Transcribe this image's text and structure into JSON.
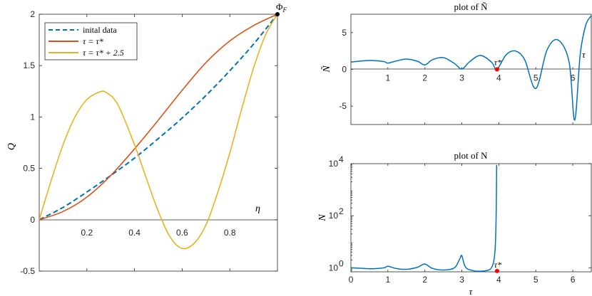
{
  "colors": {
    "series1": "#0072BD",
    "series2": "#D95319",
    "series3": "#EDB120",
    "marker": "#FF0000",
    "axes": "#262626"
  },
  "chart_data": [
    {
      "type": "line",
      "ylabel": "Q",
      "xlabel": "η",
      "xlim": [
        0,
        1
      ],
      "ylim": [
        -0.5,
        2
      ],
      "xticks": [
        "0.2",
        "0.4",
        "0.6",
        "0.8"
      ],
      "yticks": [
        "-0.5",
        "0",
        "0.5",
        "1",
        "1.5",
        "2"
      ],
      "legend_position": "top-left",
      "endpoint_label": "Φ_F",
      "endpoint": [
        1,
        2
      ],
      "series": [
        {
          "name": "inital data",
          "style": "dashed",
          "x": [
            0,
            0.1,
            0.2,
            0.3,
            0.4,
            0.5,
            0.6,
            0.7,
            0.8,
            0.9,
            1
          ],
          "y": [
            0,
            0.12,
            0.27,
            0.43,
            0.6,
            0.79,
            0.99,
            1.21,
            1.45,
            1.71,
            2
          ]
        },
        {
          "name": "τ = τ*",
          "style": "solid",
          "x": [
            0,
            0.1,
            0.2,
            0.3,
            0.4,
            0.5,
            0.6,
            0.7,
            0.8,
            0.9,
            1
          ],
          "y": [
            0,
            0.08,
            0.22,
            0.43,
            0.69,
            0.97,
            1.26,
            1.53,
            1.74,
            1.89,
            2
          ]
        },
        {
          "name": "τ = τ* + 2.5",
          "style": "solid",
          "x": [
            0,
            0.05,
            0.1,
            0.15,
            0.2,
            0.25,
            0.28,
            0.33,
            0.4,
            0.45,
            0.5,
            0.55,
            0.6,
            0.65,
            0.7,
            0.75,
            0.8,
            0.85,
            0.9,
            0.95,
            1
          ],
          "y": [
            0,
            0.38,
            0.73,
            1.0,
            1.17,
            1.24,
            1.24,
            1.12,
            0.73,
            0.4,
            0.08,
            -0.17,
            -0.28,
            -0.23,
            -0.05,
            0.27,
            0.65,
            1.08,
            1.48,
            1.8,
            2
          ]
        }
      ]
    },
    {
      "type": "line",
      "title": "plot of Ñ",
      "ylabel": "Ñ",
      "xlabel": "τ",
      "xlim": [
        0,
        6.5
      ],
      "ylim": [
        -7.5,
        7.5
      ],
      "xticks": [
        "1",
        "2",
        "3",
        "4",
        "5",
        "6"
      ],
      "yticks": [
        "5",
        "0",
        "-5"
      ],
      "marker_label": "τ*",
      "marker": [
        3.95,
        0
      ],
      "series": [
        {
          "name": "",
          "x": [
            0,
            0.3,
            0.6,
            0.9,
            1,
            1.2,
            1.5,
            1.8,
            2,
            2.2,
            2.5,
            2.8,
            3,
            3.2,
            3.5,
            3.8,
            3.95,
            4.2,
            4.45,
            4.7,
            5,
            5.3,
            5.6,
            5.9,
            6.05,
            6.2,
            6.35,
            6.5
          ],
          "y": [
            1.0,
            1.15,
            1.2,
            1.05,
            0.85,
            1.1,
            1.4,
            1.1,
            0.6,
            1.3,
            1.6,
            0.8,
            0.05,
            1.0,
            1.9,
            1.0,
            0.05,
            2.0,
            2.5,
            1.3,
            -2.6,
            2.6,
            4.0,
            1.0,
            -6.9,
            2.0,
            6.0,
            7.3
          ]
        }
      ]
    },
    {
      "type": "line",
      "title": "plot of N",
      "ylabel": "N",
      "xlabel": "τ",
      "xlim": [
        0,
        6.5
      ],
      "ylim": [
        0.7,
        10000
      ],
      "yscale": "log",
      "xticks": [
        "0",
        "1",
        "2",
        "3",
        "4",
        "5",
        "6"
      ],
      "yticks": [
        "10^0",
        "10^2",
        "10^4"
      ],
      "marker_label": "τ*",
      "marker": [
        3.95,
        0.75
      ],
      "series": [
        {
          "name": "",
          "x": [
            0,
            0.3,
            0.6,
            0.9,
            1,
            1.2,
            1.5,
            1.8,
            2,
            2.2,
            2.5,
            2.8,
            2.95,
            3,
            3.1,
            3.3,
            3.5,
            3.7,
            3.8,
            3.87,
            3.91,
            3.93,
            3.94
          ],
          "y": [
            1.0,
            0.95,
            0.92,
            1.0,
            1.15,
            0.95,
            0.87,
            1.05,
            1.4,
            0.95,
            0.82,
            1.0,
            2.3,
            2.9,
            1.05,
            0.78,
            0.74,
            0.8,
            1.0,
            2.0,
            10,
            200,
            9000
          ]
        }
      ]
    }
  ]
}
